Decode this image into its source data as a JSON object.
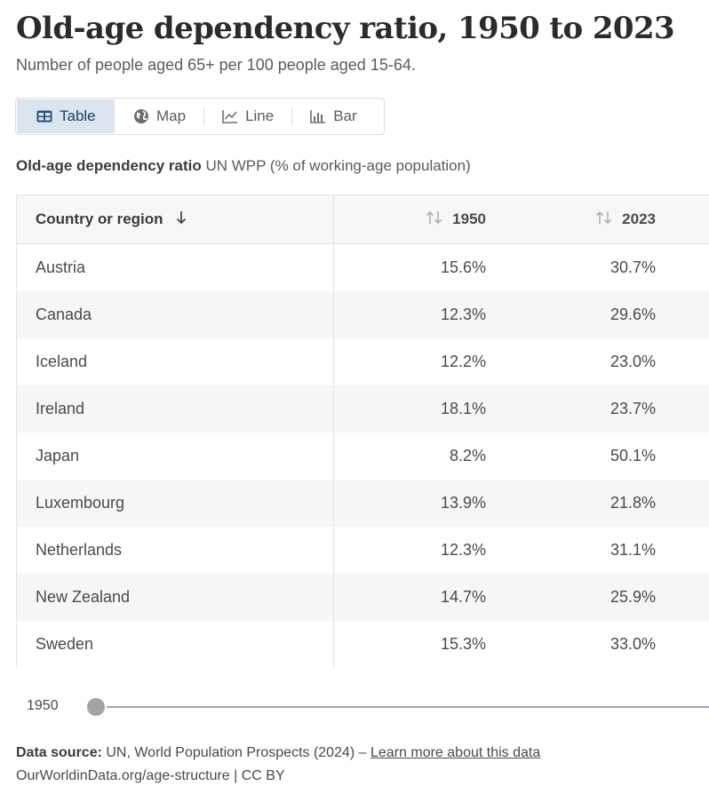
{
  "header": {
    "title": "Old-age dependency ratio, 1950 to 2023",
    "subtitle": "Number of people aged 65+ per 100 people aged 15-64."
  },
  "tabs": [
    {
      "label": "Table",
      "icon": "table-icon",
      "active": true
    },
    {
      "label": "Map",
      "icon": "globe-icon",
      "active": false
    },
    {
      "label": "Line",
      "icon": "line-chart-icon",
      "active": false
    },
    {
      "label": "Bar",
      "icon": "bar-chart-icon",
      "active": false
    }
  ],
  "table": {
    "label_bold": "Old-age dependency ratio",
    "label_rest": " UN WPP (% of working-age population)",
    "columns": [
      "Country or region",
      "1950",
      "2023"
    ],
    "rows": [
      {
        "country": "Austria",
        "y1950": "15.6%",
        "y2023": "30.7%"
      },
      {
        "country": "Canada",
        "y1950": "12.3%",
        "y2023": "29.6%"
      },
      {
        "country": "Iceland",
        "y1950": "12.2%",
        "y2023": "23.0%"
      },
      {
        "country": "Ireland",
        "y1950": "18.1%",
        "y2023": "23.7%"
      },
      {
        "country": "Japan",
        "y1950": "8.2%",
        "y2023": "50.1%"
      },
      {
        "country": "Luxembourg",
        "y1950": "13.9%",
        "y2023": "21.8%"
      },
      {
        "country": "Netherlands",
        "y1950": "12.3%",
        "y2023": "31.1%"
      },
      {
        "country": "New Zealand",
        "y1950": "14.7%",
        "y2023": "25.9%"
      },
      {
        "country": "Sweden",
        "y1950": "15.3%",
        "y2023": "33.0%"
      }
    ]
  },
  "timeline": {
    "start_label": "1950"
  },
  "footer": {
    "source_label": "Data source:",
    "source_text": " UN, World Population Prospects (2024) – ",
    "learn_more": "Learn more about this data",
    "credit": "OurWorldinData.org/age-structure | CC BY"
  }
}
